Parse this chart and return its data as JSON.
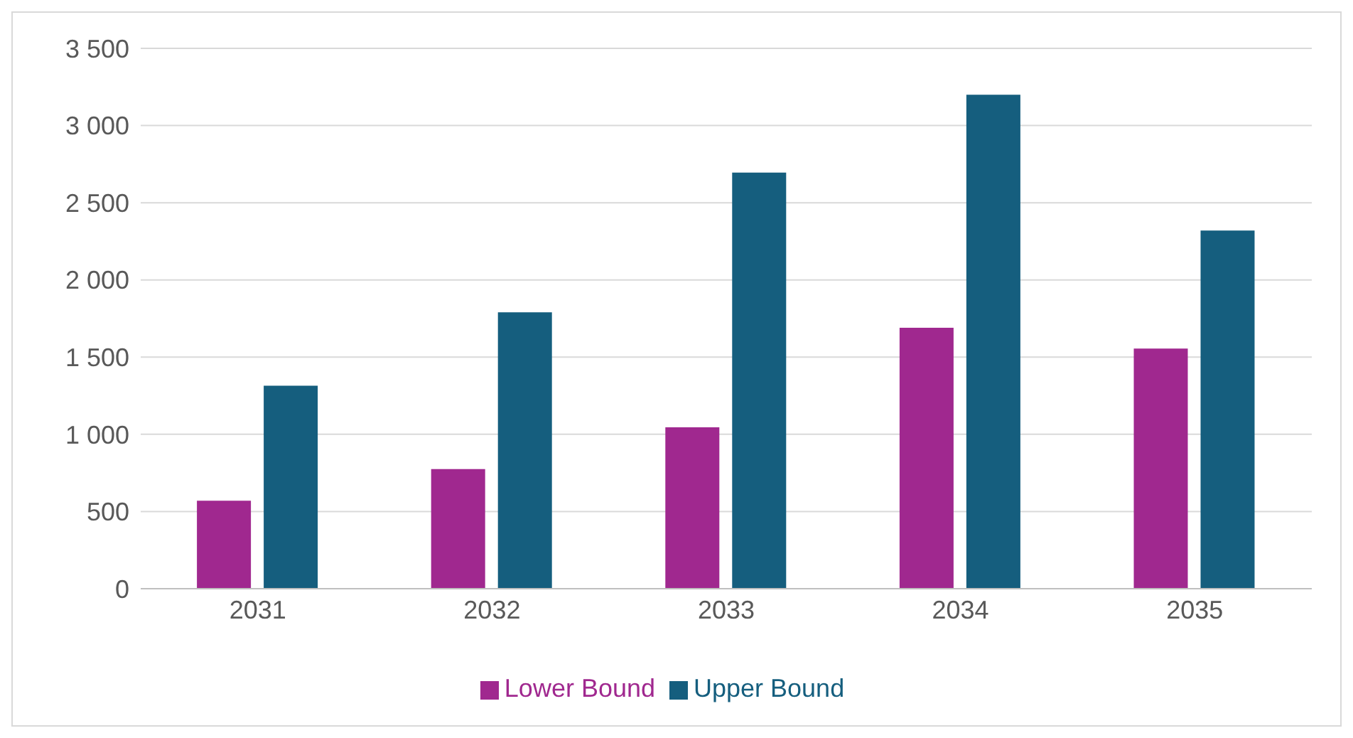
{
  "chart_data": {
    "type": "bar",
    "categories": [
      "2031",
      "2032",
      "2033",
      "2034",
      "2035"
    ],
    "series": [
      {
        "name": "Lower Bound",
        "color": "#a0288f",
        "values": [
          570,
          775,
          1045,
          1690,
          1555
        ]
      },
      {
        "name": "Upper Bound",
        "color": "#155e7e",
        "values": [
          1315,
          1790,
          2695,
          3200,
          2320
        ]
      }
    ],
    "ylim": [
      0,
      3500
    ],
    "yticks": [
      0,
      500,
      {
        "value": 1000,
        "label": "1 000"
      },
      {
        "value": 1500,
        "label": "1 500"
      },
      {
        "value": 2000,
        "label": "2 000"
      },
      {
        "value": 2500,
        "label": "2 500"
      },
      {
        "value": 3000,
        "label": "3 000"
      },
      {
        "value": 3500,
        "label": "3 500"
      }
    ],
    "grid": "y",
    "legend": "bottom"
  }
}
